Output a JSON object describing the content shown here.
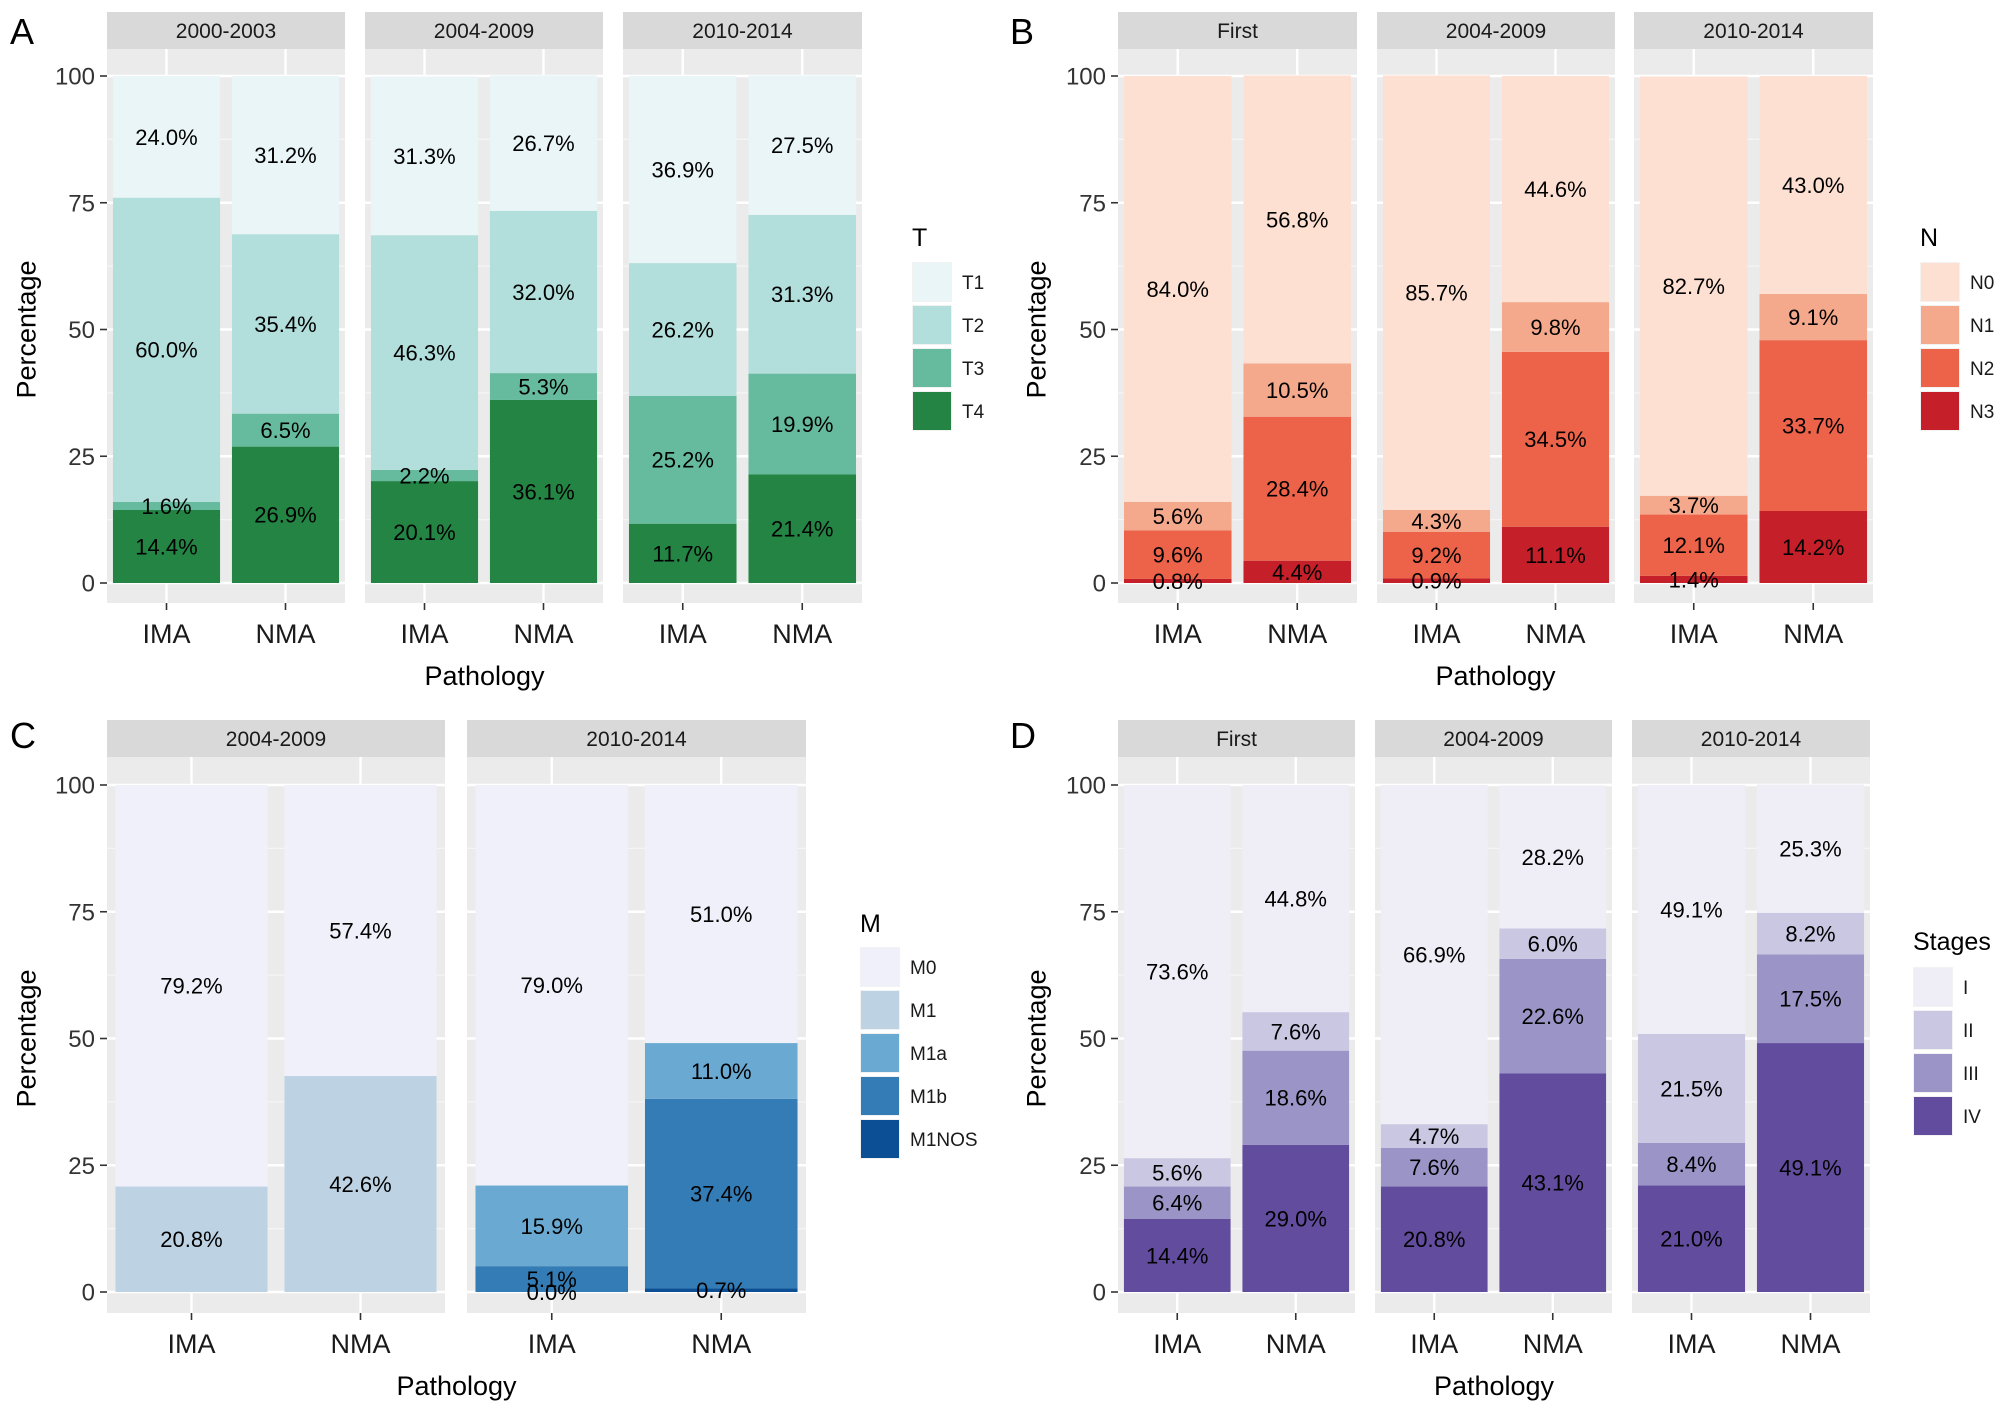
{
  "chart_data": [
    {
      "type": "bar",
      "letter": "A",
      "xlabel": "Pathology",
      "ylabel": "Percentage",
      "ylim": [
        0,
        100
      ],
      "yticks": [
        "0",
        "25",
        "50",
        "75",
        "100"
      ],
      "legend": {
        "title": "T",
        "items": [
          "T1",
          "T2",
          "T3",
          "T4"
        ],
        "colors": [
          "#e9f5f7",
          "#b2dfdb",
          "#66bb9e",
          "#238443"
        ]
      },
      "facets": [
        {
          "strip": "2000-2003",
          "bars": [
            {
              "category": "IMA",
              "values": [
                14.4,
                1.6,
                60.0,
                24.0
              ],
              "labels": [
                "14.4%",
                "1.6%",
                "60.0%",
                "24.0%"
              ]
            },
            {
              "category": "NMA",
              "values": [
                26.9,
                6.5,
                35.4,
                31.2
              ],
              "labels": [
                "26.9%",
                "6.5%",
                "35.4%",
                "31.2%"
              ]
            }
          ]
        },
        {
          "strip": "2004-2009",
          "bars": [
            {
              "category": "IMA",
              "values": [
                20.1,
                2.2,
                46.3,
                31.3
              ],
              "labels": [
                "20.1%",
                "2.2%",
                "46.3%",
                "31.3%"
              ]
            },
            {
              "category": "NMA",
              "values": [
                36.1,
                5.3,
                32.0,
                26.7
              ],
              "labels": [
                "36.1%",
                "5.3%",
                "32.0%",
                "26.7%"
              ]
            }
          ]
        },
        {
          "strip": "2010-2014",
          "bars": [
            {
              "category": "IMA",
              "values": [
                11.7,
                25.2,
                26.2,
                36.9
              ],
              "labels": [
                "11.7%",
                "25.2%",
                "26.2%",
                "36.9%"
              ]
            },
            {
              "category": "NMA",
              "values": [
                21.4,
                19.9,
                31.3,
                27.5
              ],
              "labels": [
                "21.4%",
                "19.9%",
                "31.3%",
                "27.5%"
              ]
            }
          ]
        }
      ]
    },
    {
      "type": "bar",
      "letter": "B",
      "xlabel": "Pathology",
      "ylabel": "Percentage",
      "ylim": [
        0,
        100
      ],
      "yticks": [
        "0",
        "25",
        "50",
        "75",
        "100"
      ],
      "legend": {
        "title": "N",
        "items": [
          "N0",
          "N1",
          "N2",
          "N3"
        ],
        "colors": [
          "#fde0d2",
          "#f5a98c",
          "#ec634a",
          "#c5202a"
        ]
      },
      "facets": [
        {
          "strip": "First",
          "bars": [
            {
              "category": "IMA",
              "values": [
                0.8,
                9.6,
                5.6,
                84.0
              ],
              "labels": [
                "0.8%",
                "9.6%",
                "5.6%",
                "84.0%"
              ]
            },
            {
              "category": "NMA",
              "values": [
                4.4,
                28.4,
                10.5,
                56.8
              ],
              "labels": [
                "4.4%",
                "28.4%",
                "10.5%",
                "56.8%"
              ]
            }
          ]
        },
        {
          "strip": "2004-2009",
          "bars": [
            {
              "category": "IMA",
              "values": [
                0.9,
                9.2,
                4.3,
                85.7
              ],
              "labels": [
                "0.9%",
                "9.2%",
                "4.3%",
                "85.7%"
              ]
            },
            {
              "category": "NMA",
              "values": [
                11.1,
                34.5,
                9.8,
                44.6
              ],
              "labels": [
                "11.1%",
                "34.5%",
                "9.8%",
                "44.6%"
              ]
            }
          ]
        },
        {
          "strip": "2010-2014",
          "bars": [
            {
              "category": "IMA",
              "values": [
                1.4,
                12.1,
                3.7,
                82.7
              ],
              "labels": [
                "1.4%",
                "12.1%",
                "3.7%",
                "82.7%"
              ]
            },
            {
              "category": "NMA",
              "values": [
                14.2,
                33.7,
                9.1,
                43.0
              ],
              "labels": [
                "14.2%",
                "33.7%",
                "9.1%",
                "43.0%"
              ]
            }
          ]
        }
      ]
    },
    {
      "type": "bar",
      "letter": "C",
      "xlabel": "Pathology",
      "ylabel": "Percentage",
      "ylim": [
        0,
        100
      ],
      "yticks": [
        "0",
        "25",
        "50",
        "75",
        "100"
      ],
      "legend": {
        "title": "M",
        "items": [
          "M0",
          "M1",
          "M1a",
          "M1b",
          "M1NOS"
        ],
        "colors": [
          "#eff0f9",
          "#bdd3e4",
          "#6aa9d1",
          "#347cb5",
          "#0c4f94"
        ]
      },
      "facets": [
        {
          "strip": "2004-2009",
          "bars": [
            {
              "category": "IMA",
              "segments": [
                1
              ],
              "values": [
                20.8
              ],
              "labels": [
                "20.8%"
              ],
              "top": {
                "value": 79.2,
                "label": "79.2%"
              }
            },
            {
              "category": "NMA",
              "segments": [
                1
              ],
              "values": [
                42.6
              ],
              "labels": [
                "42.6%"
              ],
              "top": {
                "value": 57.4,
                "label": "57.4%"
              }
            }
          ]
        },
        {
          "strip": "2010-2014",
          "bars": [
            {
              "category": "IMA",
              "segments": [
                3,
                2
              ],
              "values": [
                5.1,
                15.9
              ],
              "labels": [
                "5.1%",
                "15.9%"
              ],
              "extra_label": "0.0%",
              "top": {
                "value": 79.0,
                "label": "79.0%"
              }
            },
            {
              "category": "NMA",
              "segments": [
                4,
                3,
                2
              ],
              "values": [
                0.7,
                37.4,
                11.0
              ],
              "labels": [
                "0.7%",
                "37.4%",
                "11.0%"
              ],
              "top": {
                "value": 51.0,
                "label": "51.0%"
              }
            }
          ]
        }
      ]
    },
    {
      "type": "bar",
      "letter": "D",
      "xlabel": "Pathology",
      "ylabel": "Percentage",
      "ylim": [
        0,
        100
      ],
      "yticks": [
        "0",
        "25",
        "50",
        "75",
        "100"
      ],
      "legend": {
        "title": "Stages",
        "items": [
          "I",
          "II",
          "III",
          "IV"
        ],
        "colors": [
          "#efeef7",
          "#c9c7e2",
          "#9b95c7",
          "#624c9d"
        ]
      },
      "facets": [
        {
          "strip": "First",
          "bars": [
            {
              "category": "IMA",
              "values": [
                14.4,
                6.4,
                5.6,
                73.6
              ],
              "labels": [
                "14.4%",
                "6.4%",
                "5.6%",
                "73.6%"
              ]
            },
            {
              "category": "NMA",
              "values": [
                29.0,
                18.6,
                7.6,
                44.8
              ],
              "labels": [
                "29.0%",
                "18.6%",
                "7.6%",
                "44.8%"
              ]
            }
          ]
        },
        {
          "strip": "2004-2009",
          "bars": [
            {
              "category": "IMA",
              "values": [
                20.8,
                7.6,
                4.7,
                66.9
              ],
              "labels": [
                "20.8%",
                "7.6%",
                "4.7%",
                "66.9%"
              ]
            },
            {
              "category": "NMA",
              "values": [
                43.1,
                22.6,
                6.0,
                28.2
              ],
              "labels": [
                "43.1%",
                "22.6%",
                "6.0%",
                "28.2%"
              ]
            }
          ]
        },
        {
          "strip": "2010-2014",
          "bars": [
            {
              "category": "IMA",
              "values": [
                21.0,
                8.4,
                21.5,
                49.1
              ],
              "labels": [
                "21.0%",
                "8.4%",
                "21.5%",
                "49.1%"
              ]
            },
            {
              "category": "NMA",
              "values": [
                49.1,
                17.5,
                8.2,
                25.3
              ],
              "labels": [
                "49.1%",
                "17.5%",
                "8.2%",
                "25.3%"
              ]
            }
          ]
        }
      ]
    }
  ]
}
